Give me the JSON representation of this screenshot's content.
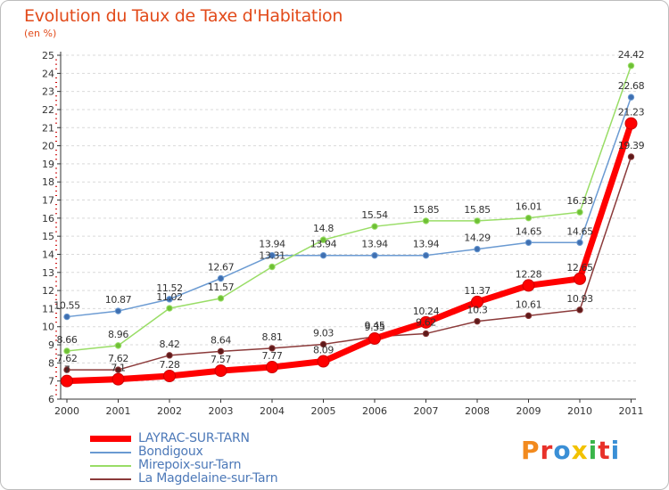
{
  "colors": {
    "title": "#e24a1a",
    "axis": "#333333",
    "grid": "#d9d9d9",
    "axis_ticks_red": "#cc0000",
    "legend_text": "#4d79b8"
  },
  "chart_data": {
    "type": "line",
    "title": "Evolution du Taux de Taxe d'Habitation",
    "subtitle": "(en %)",
    "xlabel": "",
    "ylabel": "",
    "categories": [
      "2000",
      "2001",
      "2002",
      "2003",
      "2004",
      "2005",
      "2006",
      "2007",
      "2008",
      "2009",
      "2010",
      "2011"
    ],
    "ylim": [
      6,
      25
    ],
    "yticks": [
      "6",
      "7",
      "8",
      "9",
      "10",
      "11",
      "12",
      "13",
      "14",
      "15",
      "16",
      "17",
      "18",
      "19",
      "20",
      "21",
      "22",
      "23",
      "24",
      "25"
    ],
    "grid": "horizontal dashed",
    "legend_position": "bottom-left",
    "series": [
      {
        "name": "LAYRAC-SUR-TARN",
        "color": "#ff0000",
        "marker_color": "#ee0000",
        "values": [
          7.0,
          7.1,
          7.28,
          7.57,
          7.77,
          8.09,
          9.35,
          10.24,
          11.37,
          12.28,
          12.65,
          21.23
        ],
        "labels": [
          "7",
          "7.1",
          "7.28",
          "7.57",
          "7.77",
          "8.09",
          "9.35",
          "10.24",
          "11.37",
          "12.28",
          "12.65",
          "21.23"
        ]
      },
      {
        "name": "Bondigoux",
        "color": "#6a9ad2",
        "marker_color": "#3f6fb0",
        "values": [
          10.55,
          10.87,
          11.52,
          12.67,
          13.94,
          13.94,
          13.94,
          13.94,
          14.29,
          14.65,
          14.65,
          22.68
        ],
        "labels": [
          "10.55",
          "10.87",
          "11.52",
          "12.67",
          "13.94",
          "13.94",
          "13.94",
          "13.94",
          "14.29",
          "14.65",
          "14.65",
          "22.68"
        ]
      },
      {
        "name": "Mirepoix-sur-Tarn",
        "color": "#99dd66",
        "marker_color": "#6ec035",
        "values": [
          8.66,
          8.96,
          11.02,
          11.57,
          13.31,
          14.8,
          15.54,
          15.85,
          15.85,
          16.01,
          16.33,
          24.42
        ],
        "labels": [
          "8.66",
          "8.96",
          "11.02",
          "11.57",
          "13.31",
          "14.8",
          "15.54",
          "15.85",
          "15.85",
          "16.01",
          "16.33",
          "24.42"
        ]
      },
      {
        "name": "La Magdelaine-sur-Tarn",
        "color": "#8b3a3a",
        "marker_color": "#5e1a1a",
        "values": [
          7.62,
          7.62,
          8.42,
          8.64,
          8.81,
          9.03,
          9.45,
          9.62,
          10.3,
          10.61,
          10.93,
          19.39
        ],
        "labels": [
          "7.62",
          "7.62",
          "8.42",
          "8.64",
          "8.81",
          "9.03",
          "9.45",
          "9.62",
          "10.3",
          "10.61",
          "10.93",
          "19.39"
        ]
      }
    ]
  },
  "logo": {
    "letters": [
      "P",
      "r",
      "o",
      "x",
      "i",
      "t",
      "i"
    ],
    "colors": [
      "#f28a1e",
      "#e8312a",
      "#3a8fd6",
      "#f2c200",
      "#3ab54a",
      "#e8312a",
      "#3a8fd6"
    ]
  }
}
